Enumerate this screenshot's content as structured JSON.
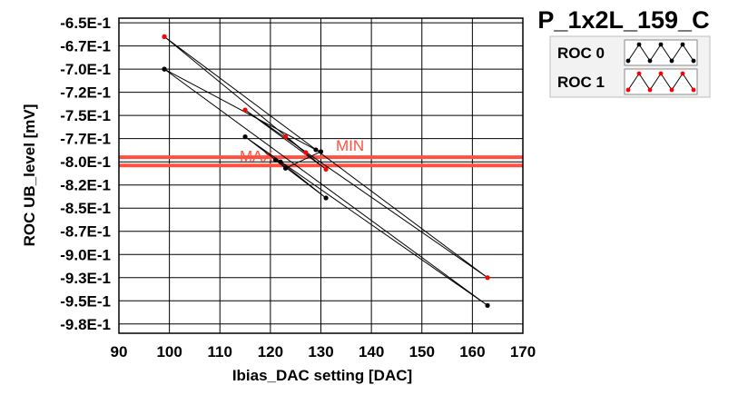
{
  "chart_data": {
    "type": "scatter",
    "title": "P_1x2L_159_C",
    "xlabel": "Ibias_DAC setting [DAC]",
    "ylabel": "ROC UB_level [mV]",
    "xlim": [
      90,
      170
    ],
    "ylim": [
      -985,
      -645
    ],
    "grid": true,
    "legend_position": "top-right",
    "x_ticks": [
      90,
      100,
      110,
      120,
      130,
      140,
      150,
      160,
      170
    ],
    "y_ticks": [
      {
        "value": -650,
        "label": "-6.5E-1"
      },
      {
        "value": -675,
        "label": "-6.7E-1"
      },
      {
        "value": -700,
        "label": "-7.0E-1"
      },
      {
        "value": -725,
        "label": "-7.2E-1"
      },
      {
        "value": -750,
        "label": "-7.5E-1"
      },
      {
        "value": -775,
        "label": "-7.7E-1"
      },
      {
        "value": -800,
        "label": "-8.0E-1"
      },
      {
        "value": -825,
        "label": "-8.2E-1"
      },
      {
        "value": -850,
        "label": "-8.5E-1"
      },
      {
        "value": -875,
        "label": "-8.7E-1"
      },
      {
        "value": -900,
        "label": "-9.0E-1"
      },
      {
        "value": -925,
        "label": "-9.3E-1"
      },
      {
        "value": -950,
        "label": "-9.5E-1"
      },
      {
        "value": -975,
        "label": "-9.8E-1"
      }
    ],
    "series": [
      {
        "name": "ROC 0",
        "color": "#000000",
        "points": [
          {
            "x": 99,
            "y": -700
          },
          {
            "x": 163,
            "y": -955
          },
          {
            "x": 115,
            "y": -773
          },
          {
            "x": 131,
            "y": -839
          },
          {
            "x": 122,
            "y": -800
          },
          {
            "x": 121,
            "y": -798
          },
          {
            "x": 123,
            "y": -807
          },
          {
            "x": 130,
            "y": -789
          },
          {
            "x": 129,
            "y": -787
          },
          {
            "x": 99,
            "y": -700
          }
        ]
      },
      {
        "name": "ROC 1",
        "color": "#ff0000",
        "points": [
          {
            "x": 99,
            "y": -665
          },
          {
            "x": 163,
            "y": -925
          },
          {
            "x": 115,
            "y": -744
          },
          {
            "x": 131,
            "y": -808
          },
          {
            "x": 123,
            "y": -773
          },
          {
            "x": 127,
            "y": -790
          },
          {
            "x": 99,
            "y": -665
          }
        ]
      }
    ],
    "limits": [
      {
        "label": "MIN",
        "value": -795,
        "color": "#ff5040"
      },
      {
        "label": "MAX",
        "value": -804,
        "color": "#ff5040"
      }
    ]
  }
}
